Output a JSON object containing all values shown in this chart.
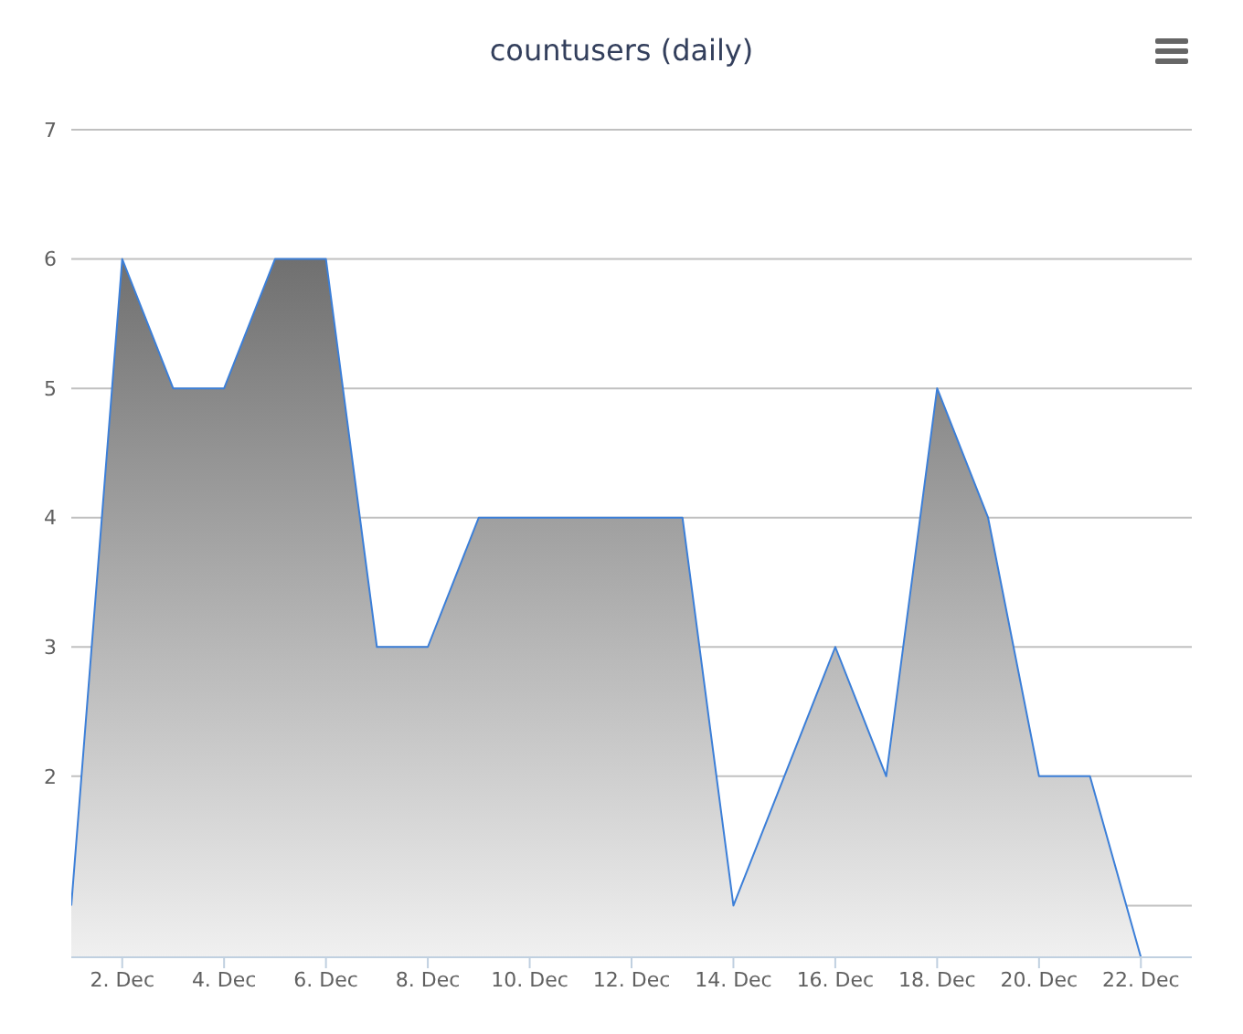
{
  "chart_data": {
    "type": "area",
    "title": "countusers (daily)",
    "x": [
      "--12-01",
      "--12-02",
      "--12-03",
      "--12-04",
      "--12-05",
      "--12-06",
      "--12-07",
      "--12-08",
      "--12-09",
      "--12-10",
      "--12-11",
      "--12-12",
      "--12-13",
      "--12-14",
      "--12-15",
      "--12-16",
      "--12-17",
      "--12-18",
      "--12-19",
      "--12-20",
      "--12-21",
      "--12-22"
    ],
    "series": [
      {
        "color": "#3c7fd8",
        "values": [
          1,
          6,
          5,
          5,
          6,
          6,
          3,
          3,
          4,
          4,
          4,
          4,
          4,
          1,
          2,
          3,
          2,
          5,
          4,
          2,
          2,
          0.6
        ]
      }
    ],
    "xlim": [
      "--12-01",
      "--12-23"
    ],
    "xticks": [
      {
        "value": "--12-02",
        "label": "2. Dec"
      },
      {
        "value": "--12-04",
        "label": "4. Dec"
      },
      {
        "value": "--12-06",
        "label": "6. Dec"
      },
      {
        "value": "--12-08",
        "label": "8. Dec"
      },
      {
        "value": "--12-10",
        "label": "10. Dec"
      },
      {
        "value": "--12-12",
        "label": "12. Dec"
      },
      {
        "value": "--12-14",
        "label": "14. Dec"
      },
      {
        "value": "--12-16",
        "label": "16. Dec"
      },
      {
        "value": "--12-18",
        "label": "18. Dec"
      },
      {
        "value": "--12-20",
        "label": "20. Dec"
      },
      {
        "value": "--12-22",
        "label": "22. Dec"
      }
    ],
    "ylim": [
      0.6,
      7
    ],
    "yticks": [
      {
        "value": 1,
        "label": null
      },
      2,
      3,
      4,
      5,
      6,
      7
    ],
    "grid": "y",
    "legend": false,
    "marker": "none",
    "line_style": "solid"
  }
}
